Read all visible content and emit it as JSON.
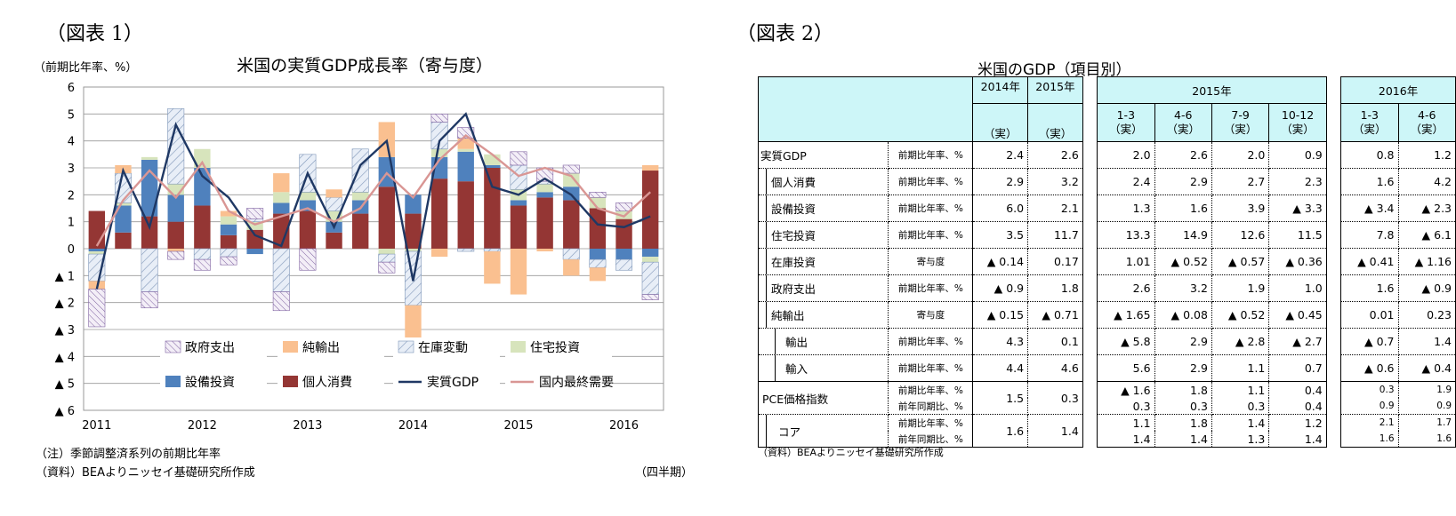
{
  "fig1": {
    "label": "（図表 1）",
    "title": "米国の実質GDP成長率（寄与度）",
    "unit_label": "（前期比年率、%）",
    "notes": [
      "（注）季節調整済系列の前期比年率",
      "（資料）BEAよりニッセイ基礎研究所作成"
    ],
    "period_label": "（四半期）"
  },
  "fig2": {
    "label": "（図表 2）",
    "title": "米国のGDP（項目別）",
    "source": "（資料）BEAよりニッセイ基礎研究所作成",
    "col_year_2014": "2014年",
    "col_year_2015": "2015年",
    "group_2015": "2015年",
    "group_2016": "2016年",
    "jitsu": "（実）",
    "quarters_2015": [
      "1-3",
      "4-6",
      "7-9",
      "10-12"
    ],
    "quarters_2016": [
      "1-3",
      "4-6"
    ],
    "rows": [
      {
        "label": "実質GDP",
        "unit": "前期比年率、%",
        "values": [
          "2.4",
          "2.6",
          "2.0",
          "2.6",
          "2.0",
          "0.9",
          "0.8",
          "1.2"
        ]
      },
      {
        "label": "個人消費",
        "unit": "前期比年率、%",
        "values": [
          "2.9",
          "3.2",
          "2.4",
          "2.9",
          "2.7",
          "2.3",
          "1.6",
          "4.2"
        ]
      },
      {
        "label": "設備投資",
        "unit": "前期比年率、%",
        "values": [
          "6.0",
          "2.1",
          "1.3",
          "1.6",
          "3.9",
          "▲ 3.3",
          "▲ 3.4",
          "▲ 2.3"
        ]
      },
      {
        "label": "住宅投資",
        "unit": "前期比年率、%",
        "values": [
          "3.5",
          "11.7",
          "13.3",
          "14.9",
          "12.6",
          "11.5",
          "7.8",
          "▲ 6.1"
        ]
      },
      {
        "label": "在庫投資",
        "unit": "寄与度",
        "values": [
          "▲ 0.14",
          "0.17",
          "1.01",
          "▲ 0.52",
          "▲ 0.57",
          "▲ 0.36",
          "▲ 0.41",
          "▲ 1.16"
        ]
      },
      {
        "label": "政府支出",
        "unit": "前期比年率、%",
        "values": [
          "▲ 0.9",
          "1.8",
          "2.6",
          "3.2",
          "1.9",
          "1.0",
          "1.6",
          "▲ 0.9"
        ]
      },
      {
        "label": "純輸出",
        "unit": "寄与度",
        "values": [
          "▲ 0.15",
          "▲ 0.71",
          "▲ 1.65",
          "▲ 0.08",
          "▲ 0.52",
          "▲ 0.45",
          "0.01",
          "0.23"
        ]
      },
      {
        "label": "輸出",
        "unit": "前期比年率、%",
        "values": [
          "4.3",
          "0.1",
          "▲ 5.8",
          "2.9",
          "▲ 2.8",
          "▲ 2.7",
          "▲ 0.7",
          "1.4"
        ]
      },
      {
        "label": "輸入",
        "unit": "前期比年率、%",
        "values": [
          "4.4",
          "4.6",
          "5.6",
          "2.9",
          "1.1",
          "0.7",
          "▲ 0.6",
          "▲ 0.4"
        ]
      }
    ],
    "pce": {
      "label": "PCE価格指数",
      "units": [
        "前期比年率、%",
        "前年同期比、%"
      ],
      "annual": [
        "1.5",
        "0.3"
      ],
      "q1": [
        "▲ 1.6",
        "1.8",
        "1.1",
        "0.4",
        "0.3",
        "1.9"
      ],
      "q2": [
        "0.3",
        "0.3",
        "0.3",
        "0.4",
        "0.9",
        "0.9"
      ]
    },
    "core": {
      "label": "コア",
      "units": [
        "前期比年率、%",
        "前年同期比、%"
      ],
      "annual": [
        "1.6",
        "1.4"
      ],
      "q1": [
        "1.1",
        "1.8",
        "1.4",
        "1.2",
        "2.1",
        "1.7"
      ],
      "q2": [
        "1.4",
        "1.4",
        "1.3",
        "1.4",
        "1.6",
        "1.6"
      ]
    }
  },
  "chart_data": {
    "type": "bar",
    "title": "米国の実質GDP成長率（寄与度）",
    "ylabel": "（前期比年率、%）",
    "xlabel": "（四半期）",
    "ylim": [
      -6,
      6
    ],
    "yticks": [
      "6",
      "5",
      "4",
      "3",
      "2",
      "1",
      "0",
      "▲ 1",
      "▲ 2",
      "▲ 3",
      "▲ 4",
      "▲ 5",
      "▲ 6"
    ],
    "year_labels": [
      "2011",
      "2012",
      "2013",
      "2014",
      "2015",
      "2016"
    ],
    "categories": [
      "2011Q1",
      "2011Q2",
      "2011Q3",
      "2011Q4",
      "2012Q1",
      "2012Q2",
      "2012Q3",
      "2012Q4",
      "2013Q1",
      "2013Q2",
      "2013Q3",
      "2013Q4",
      "2014Q1",
      "2014Q2",
      "2014Q3",
      "2014Q4",
      "2015Q1",
      "2015Q2",
      "2015Q3",
      "2015Q4",
      "2016Q1",
      "2016Q2"
    ],
    "series": [
      {
        "name": "個人消費",
        "color": "#943634",
        "values": [
          1.4,
          0.6,
          1.2,
          1.0,
          1.6,
          0.5,
          0.7,
          1.3,
          1.4,
          0.6,
          1.3,
          2.3,
          1.3,
          2.6,
          2.5,
          3.0,
          1.6,
          1.9,
          1.8,
          1.5,
          1.1,
          2.9
        ]
      },
      {
        "name": "設備投資",
        "color": "#4f81bd",
        "values": [
          -0.1,
          1.0,
          2.1,
          1.0,
          1.4,
          0.4,
          -0.2,
          0.4,
          0.4,
          0.4,
          0.5,
          1.1,
          0.7,
          0.8,
          1.1,
          0.1,
          0.2,
          0.2,
          0.5,
          -0.4,
          -0.4,
          -0.3
        ]
      },
      {
        "name": "住宅投資",
        "color": "#d7e4bc",
        "values": [
          -0.1,
          0.1,
          0.1,
          0.4,
          0.7,
          0.3,
          0.3,
          0.4,
          0.3,
          0.4,
          0.3,
          -0.2,
          -0.1,
          0.3,
          0.1,
          0.4,
          0.4,
          0.3,
          0.5,
          0.4,
          0.3,
          -0.2
        ]
      },
      {
        "name": "在庫変動",
        "color": "#dce6f2",
        "values": [
          -1.0,
          1.1,
          -1.6,
          2.8,
          -0.4,
          -0.3,
          0.1,
          -1.6,
          1.4,
          0.5,
          1.6,
          -0.3,
          -2.0,
          1.0,
          -0.1,
          -0.1,
          0.9,
          0.1,
          -0.4,
          -0.3,
          -0.4,
          -1.2
        ]
      },
      {
        "name": "純輸出",
        "color": "#fac090",
        "values": [
          -0.3,
          0.3,
          0.0,
          -0.1,
          0.0,
          0.2,
          0.0,
          0.7,
          0.0,
          0.3,
          0.0,
          1.3,
          -1.2,
          -0.3,
          0.4,
          -1.2,
          -1.7,
          -0.1,
          -0.6,
          -0.5,
          0.0,
          0.2
        ]
      },
      {
        "name": "政府支出",
        "color": "#e6e0ec",
        "values": [
          -1.4,
          0.0,
          -0.6,
          -0.3,
          -0.4,
          -0.3,
          0.4,
          -0.7,
          -0.8,
          0.0,
          0.0,
          -0.4,
          0.0,
          0.3,
          0.4,
          0.0,
          0.5,
          0.5,
          0.3,
          0.2,
          0.3,
          -0.2
        ]
      }
    ],
    "lines": [
      {
        "name": "実質GDP",
        "color": "#1f3864",
        "values": [
          -1.5,
          2.9,
          0.8,
          4.6,
          2.7,
          1.9,
          0.5,
          0.1,
          2.8,
          0.8,
          3.1,
          4.0,
          -1.2,
          4.0,
          5.0,
          2.3,
          2.0,
          2.6,
          2.0,
          0.9,
          0.8,
          1.2
        ]
      },
      {
        "name": "国内最終需要",
        "color": "#d99694",
        "values": [
          0.1,
          1.8,
          2.9,
          1.9,
          3.2,
          1.4,
          0.9,
          1.2,
          1.5,
          1.0,
          1.5,
          2.8,
          1.9,
          3.3,
          4.2,
          3.5,
          2.7,
          3.0,
          2.7,
          1.5,
          1.2,
          2.1
        ]
      }
    ],
    "legend": [
      "政府支出",
      "純輸出",
      "在庫変動",
      "住宅投資",
      "設備投資",
      "個人消費",
      "実質GDP",
      "国内最終需要"
    ],
    "grid": true,
    "legend_position": "inside-bottom"
  }
}
